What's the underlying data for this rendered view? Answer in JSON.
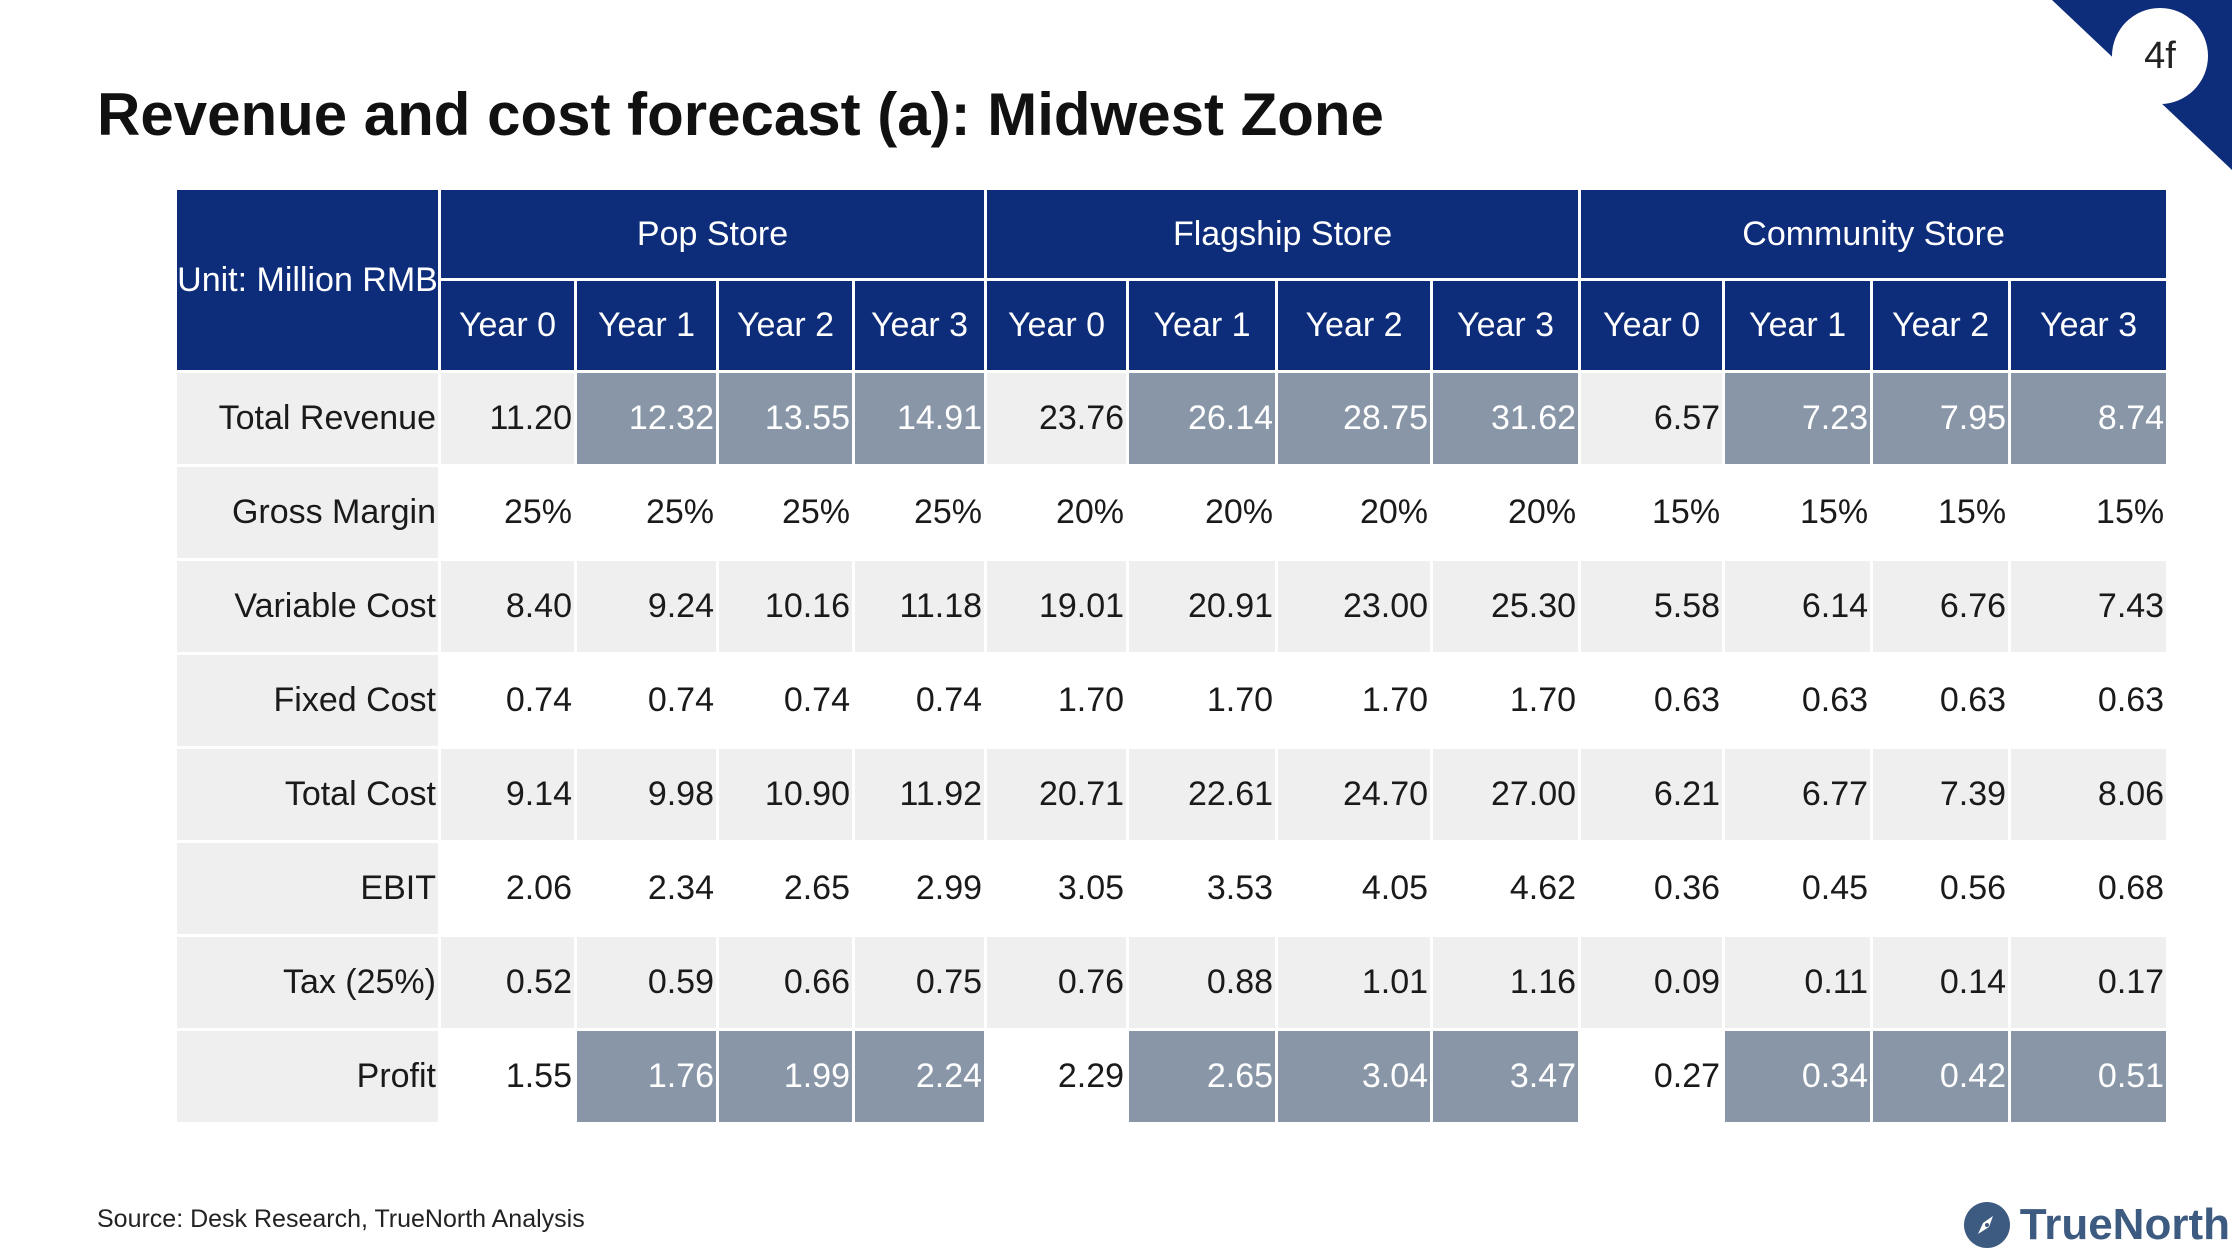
{
  "page_number": "4f",
  "title": "Revenue and cost forecast (a): Midwest Zone",
  "table": {
    "unit_label": "Unit: Million RMB",
    "groups": [
      "Pop Store",
      "Flagship Store",
      "Community Store"
    ],
    "years": [
      "Year 0",
      "Year 1",
      "Year 2",
      "Year 3",
      "Year 0",
      "Year 1",
      "Year 2",
      "Year 3",
      "Year 0",
      "Year 1",
      "Year 2",
      "Year 3"
    ],
    "rows": [
      {
        "label": "Total Revenue",
        "values": [
          "11.20",
          "12.32",
          "13.55",
          "14.91",
          "23.76",
          "26.14",
          "28.75",
          "31.62",
          "6.57",
          "7.23",
          "7.95",
          "8.74"
        ]
      },
      {
        "label": "Gross Margin",
        "values": [
          "25%",
          "25%",
          "25%",
          "25%",
          "20%",
          "20%",
          "20%",
          "20%",
          "15%",
          "15%",
          "15%",
          "15%"
        ]
      },
      {
        "label": "Variable Cost",
        "values": [
          "8.40",
          "9.24",
          "10.16",
          "11.18",
          "19.01",
          "20.91",
          "23.00",
          "25.30",
          "5.58",
          "6.14",
          "6.76",
          "7.43"
        ]
      },
      {
        "label": "Fixed Cost",
        "values": [
          "0.74",
          "0.74",
          "0.74",
          "0.74",
          "1.70",
          "1.70",
          "1.70",
          "1.70",
          "0.63",
          "0.63",
          "0.63",
          "0.63"
        ]
      },
      {
        "label": "Total Cost",
        "values": [
          "9.14",
          "9.98",
          "10.90",
          "11.92",
          "20.71",
          "22.61",
          "24.70",
          "27.00",
          "6.21",
          "6.77",
          "7.39",
          "8.06"
        ]
      },
      {
        "label": "EBIT",
        "values": [
          "2.06",
          "2.34",
          "2.65",
          "2.99",
          "3.05",
          "3.53",
          "4.05",
          "4.62",
          "0.36",
          "0.45",
          "0.56",
          "0.68"
        ]
      },
      {
        "label": "Tax (25%)",
        "values": [
          "0.52",
          "0.59",
          "0.66",
          "0.75",
          "0.76",
          "0.88",
          "1.01",
          "1.16",
          "0.09",
          "0.11",
          "0.14",
          "0.17"
        ]
      },
      {
        "label": "Profit",
        "values": [
          "1.55",
          "1.76",
          "1.99",
          "2.24",
          "2.29",
          "2.65",
          "3.04",
          "3.47",
          "0.27",
          "0.34",
          "0.42",
          "0.51"
        ]
      }
    ]
  },
  "source": "Source: Desk Research, TrueNorth Analysis",
  "brand": "TrueNorth",
  "colors": {
    "header_bg": "#0d2c7a",
    "highlight_bg": "#8896a8",
    "stripe_bg": "#efefef",
    "brand": "#3d5a80"
  }
}
